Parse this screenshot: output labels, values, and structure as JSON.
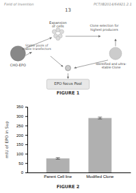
{
  "chart_data": {
    "type": "bar",
    "title": "FIGURE 2",
    "ylabel": "mIU of EPO in Sup",
    "categories": [
      "Parent Cell line",
      "Modified Clone"
    ],
    "values": [
      75,
      290
    ],
    "error_bars": [
      4,
      5
    ],
    "colors": [
      "#b0b0b0",
      "#b0b0b0"
    ],
    "ylim": [
      0,
      350
    ],
    "yticks": [
      0,
      50,
      100,
      150,
      200,
      250,
      300,
      350
    ],
    "grid": false,
    "annotations": [
      "Field of Invention",
      "PCT/IB2014/64921.2.1",
      "13",
      "CHO-EPO",
      "Expansion",
      "of cells",
      "Stable pools of",
      "stable transfectors",
      "Clone selection for",
      "highest producers",
      "Identified and ultra-",
      "stable Clone",
      "EPO focus Pool",
      "FIGURE 1"
    ]
  }
}
